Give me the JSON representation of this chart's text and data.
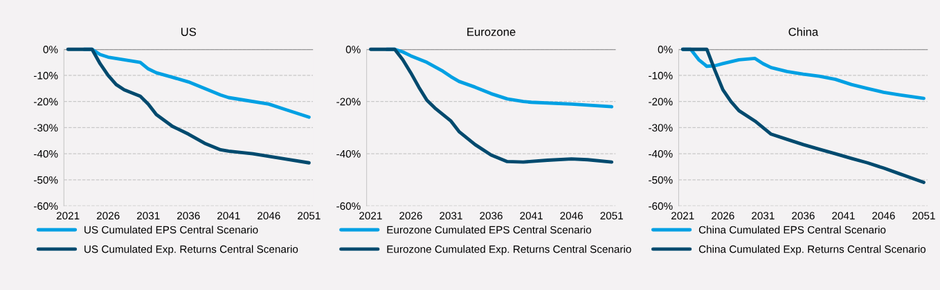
{
  "chart_data": [
    {
      "type": "line",
      "title": "US",
      "xlim": [
        2020.5,
        2051.5
      ],
      "xticks": [
        2021,
        2026,
        2031,
        2036,
        2041,
        2046,
        2051
      ],
      "ylim": [
        -60,
        0
      ],
      "yticks": [
        {
          "value": 0,
          "label": "0%"
        },
        {
          "value": -10,
          "label": "-10%"
        },
        {
          "value": -20,
          "label": "-20%"
        },
        {
          "value": -30,
          "label": "-30%"
        },
        {
          "value": -40,
          "label": "-40%"
        },
        {
          "value": -50,
          "label": "-50%"
        },
        {
          "value": -60,
          "label": "-60%"
        }
      ],
      "grid": "y",
      "legend": "bottom",
      "ref_lines": [
        {
          "axis": "y",
          "value": 0,
          "color": "#808080",
          "line_style": "solid"
        }
      ],
      "series": [
        {
          "name": "US Cumulated EPS Central Scenario",
          "color": "#00a0e3",
          "x": [
            2023,
            2024,
            2025,
            2026,
            2028,
            2030,
            2031,
            2032,
            2034,
            2036,
            2038,
            2040,
            2041,
            2043,
            2046,
            2048,
            2051
          ],
          "values": [
            0,
            0,
            -2,
            -3,
            -4,
            -5,
            -7.5,
            -9,
            -10.7,
            -12.5,
            -15,
            -17.5,
            -18.5,
            -19.5,
            -21,
            -23,
            -26
          ]
        },
        {
          "name": "US Cumulated Exp. Returns Central Scenario",
          "color": "#004a6e",
          "x": [
            2021,
            2022,
            2023,
            2024,
            2025,
            2026,
            2027,
            2028,
            2030,
            2031,
            2032,
            2034,
            2036,
            2038,
            2040,
            2041,
            2044,
            2046,
            2048,
            2051
          ],
          "values": [
            0,
            0,
            0,
            0,
            -5.5,
            -10,
            -13.5,
            -15.5,
            -18,
            -21,
            -25,
            -29.5,
            -32.5,
            -36,
            -38.5,
            -39,
            -40,
            -41,
            -42,
            -43.5
          ]
        }
      ]
    },
    {
      "type": "line",
      "title": "Eurozone",
      "xlim": [
        2020.5,
        2051.5
      ],
      "xticks": [
        2021,
        2026,
        2031,
        2036,
        2041,
        2046,
        2051
      ],
      "ylim": [
        -60,
        0
      ],
      "yticks": [
        {
          "value": 0,
          "label": "0%"
        },
        {
          "value": -20,
          "label": "-20%"
        },
        {
          "value": -40,
          "label": "-40%"
        },
        {
          "value": -60,
          "label": "-60%"
        }
      ],
      "grid": "y",
      "legend": "bottom",
      "ref_lines": [
        {
          "axis": "y",
          "value": 0,
          "color": "#808080",
          "line_style": "solid"
        }
      ],
      "series": [
        {
          "name": "Eurozone Cumulated EPS Central Scenario",
          "color": "#00a0e3",
          "x": [
            2023,
            2024,
            2025,
            2026,
            2028,
            2030,
            2031,
            2032,
            2034,
            2036,
            2038,
            2040,
            2041,
            2046,
            2051
          ],
          "values": [
            0,
            0,
            -1,
            -2.5,
            -5,
            -8.4,
            -10.5,
            -12.3,
            -14.5,
            -17,
            -19,
            -20,
            -20.3,
            -21,
            -22
          ]
        },
        {
          "name": "Eurozone Cumulated Exp. Returns Central Scenario",
          "color": "#004a6e",
          "x": [
            2021,
            2022,
            2023,
            2024,
            2025,
            2026,
            2027,
            2028,
            2029,
            2031,
            2032,
            2034,
            2036,
            2038,
            2040,
            2043,
            2046,
            2048,
            2051
          ],
          "values": [
            0,
            0,
            0,
            0,
            -4,
            -9,
            -14.5,
            -19.5,
            -22.5,
            -27.5,
            -31.5,
            -36.5,
            -40.5,
            -43,
            -43.2,
            -42.5,
            -42,
            -42.3,
            -43.2
          ]
        }
      ]
    },
    {
      "type": "line",
      "title": "China",
      "xlim": [
        2020.5,
        2051.5
      ],
      "xticks": [
        2021,
        2026,
        2031,
        2036,
        2041,
        2046,
        2051
      ],
      "ylim": [
        -60,
        0
      ],
      "yticks": [
        {
          "value": 0,
          "label": "0%"
        },
        {
          "value": -10,
          "label": "-10%"
        },
        {
          "value": -20,
          "label": "-20%"
        },
        {
          "value": -30,
          "label": "-30%"
        },
        {
          "value": -40,
          "label": "-40%"
        },
        {
          "value": -50,
          "label": "-50%"
        },
        {
          "value": -60,
          "label": "-60%"
        }
      ],
      "grid": "y",
      "legend": "bottom",
      "ref_lines": [
        {
          "axis": "y",
          "value": 0,
          "color": "#808080",
          "line_style": "solid"
        }
      ],
      "series": [
        {
          "name": "China Cumulated EPS Central Scenario",
          "color": "#00a0e3",
          "x": [
            2021,
            2022,
            2023,
            2024,
            2025,
            2026,
            2028,
            2030,
            2031,
            2032,
            2034,
            2036,
            2038,
            2040,
            2042,
            2044,
            2046,
            2048,
            2051
          ],
          "values": [
            0,
            0,
            -4,
            -6.5,
            -6.3,
            -5.5,
            -4,
            -3.5,
            -5.5,
            -7,
            -8.5,
            -9.5,
            -10.3,
            -11.5,
            -13.5,
            -15,
            -16.5,
            -17.5,
            -18.8
          ]
        },
        {
          "name": "China Cumulated Exp. Returns Central Scenario",
          "color": "#004a6e",
          "x": [
            2021,
            2022,
            2023,
            2024,
            2025,
            2026,
            2027,
            2028,
            2030,
            2032,
            2034,
            2036,
            2038,
            2040,
            2042,
            2044,
            2046,
            2048,
            2051
          ],
          "values": [
            0,
            0,
            0,
            0,
            -8,
            -15.5,
            -20,
            -23.5,
            -27.5,
            -32.5,
            -34.5,
            -36.5,
            -38.3,
            -40,
            -41.8,
            -43.5,
            -45.5,
            -47.7,
            -51
          ]
        }
      ]
    }
  ]
}
